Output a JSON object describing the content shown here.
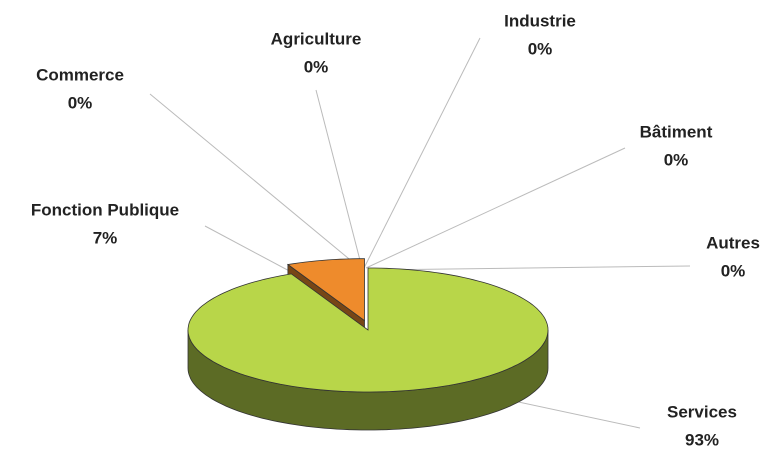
{
  "chart_data": {
    "type": "pie3d",
    "categories": [
      "Agriculture",
      "Industrie",
      "Bâtiment",
      "Autres",
      "Services",
      "Fonction Publique",
      "Commerce"
    ],
    "values": [
      0,
      0,
      0,
      0,
      93,
      7,
      0
    ],
    "value_labels": [
      "0%",
      "0%",
      "0%",
      "0%",
      "93%",
      "7%",
      "0%"
    ],
    "colors": [
      null,
      null,
      null,
      null,
      "#b8d649",
      "#ee8b2c",
      null
    ]
  }
}
